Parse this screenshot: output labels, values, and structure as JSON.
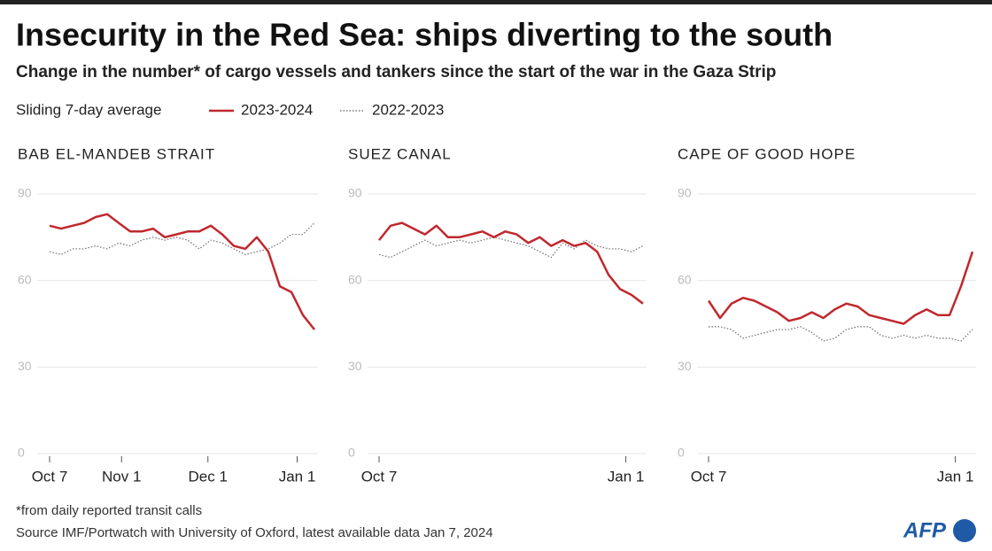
{
  "title": "Insecurity in the Red Sea: ships diverting to the south",
  "subtitle": "Change in the number* of cargo vessels and tankers since the start of the war in the Gaza Strip",
  "legend_title": "Sliding 7-day average",
  "note": "*from daily reported transit calls",
  "source": "Source  IMF/Portwatch with University of Oxford, latest available data Jan 7, 2024",
  "logo": "AFP",
  "chart_data": [
    {
      "type": "line",
      "title": "BAB EL-MANDEB STRAIT",
      "x": [
        0,
        4,
        8,
        12,
        16,
        20,
        24,
        28,
        32,
        36,
        40,
        44,
        48,
        52,
        56,
        60,
        64,
        68,
        72,
        76,
        80,
        84,
        88,
        92
      ],
      "xlim": [
        0,
        92
      ],
      "xticks": [
        {
          "value": 0,
          "label": "Oct 7"
        },
        {
          "value": 25,
          "label": "Nov 1"
        },
        {
          "value": 55,
          "label": "Dec 1"
        },
        {
          "value": 86,
          "label": "Jan 1"
        }
      ],
      "ylim": [
        0,
        90
      ],
      "yticks": [
        0,
        30,
        60,
        90
      ],
      "grid": true,
      "series": [
        {
          "name": "2023-2024",
          "color": "#c0282d",
          "values": [
            79,
            78,
            79,
            80,
            82,
            83,
            80,
            77,
            77,
            78,
            75,
            76,
            77,
            77,
            79,
            76,
            72,
            71,
            75,
            70,
            58,
            56,
            48,
            43
          ]
        },
        {
          "name": "2022-2023",
          "color": "#777777",
          "values": [
            70,
            69,
            71,
            71,
            72,
            71,
            73,
            72,
            74,
            75,
            74,
            75,
            74,
            71,
            74,
            73,
            71,
            69,
            70,
            71,
            73,
            76,
            76,
            80
          ]
        }
      ]
    },
    {
      "type": "line",
      "title": "SUEZ CANAL",
      "x": [
        0,
        4,
        8,
        12,
        16,
        20,
        24,
        28,
        32,
        36,
        40,
        44,
        48,
        52,
        56,
        60,
        64,
        68,
        72,
        76,
        80,
        84,
        88,
        92
      ],
      "xlim": [
        0,
        92
      ],
      "xticks": [
        {
          "value": 0,
          "label": "Oct 7"
        },
        {
          "value": 86,
          "label": "Jan 1"
        }
      ],
      "ylim": [
        0,
        90
      ],
      "yticks": [
        0,
        30,
        60,
        90
      ],
      "grid": true,
      "series": [
        {
          "name": "2023-2024",
          "color": "#c0282d",
          "values": [
            74,
            79,
            80,
            78,
            76,
            79,
            75,
            75,
            76,
            77,
            75,
            77,
            76,
            73,
            75,
            72,
            74,
            72,
            73,
            70,
            62,
            57,
            55,
            52
          ]
        },
        {
          "name": "2022-2023",
          "color": "#777777",
          "values": [
            69,
            68,
            70,
            72,
            74,
            72,
            73,
            74,
            73,
            74,
            75,
            74,
            73,
            72,
            70,
            68,
            73,
            71,
            74,
            72,
            71,
            71,
            70,
            72
          ]
        }
      ]
    },
    {
      "type": "line",
      "title": "CAPE OF GOOD HOPE",
      "x": [
        0,
        4,
        8,
        12,
        16,
        20,
        24,
        28,
        32,
        36,
        40,
        44,
        48,
        52,
        56,
        60,
        64,
        68,
        72,
        76,
        80,
        84,
        88,
        92
      ],
      "xlim": [
        0,
        92
      ],
      "xticks": [
        {
          "value": 0,
          "label": "Oct 7"
        },
        {
          "value": 86,
          "label": "Jan 1"
        }
      ],
      "ylim": [
        0,
        90
      ],
      "yticks": [
        0,
        30,
        60,
        90
      ],
      "grid": true,
      "series": [
        {
          "name": "2023-2024",
          "color": "#c0282d",
          "values": [
            53,
            47,
            52,
            54,
            53,
            51,
            49,
            46,
            47,
            49,
            47,
            50,
            52,
            51,
            48,
            47,
            46,
            45,
            48,
            50,
            48,
            48,
            58,
            70
          ]
        },
        {
          "name": "2022-2023",
          "color": "#777777",
          "values": [
            44,
            44,
            43,
            40,
            41,
            42,
            43,
            43,
            44,
            42,
            39,
            40,
            43,
            44,
            44,
            41,
            40,
            41,
            40,
            41,
            40,
            40,
            39,
            43
          ]
        }
      ]
    }
  ]
}
